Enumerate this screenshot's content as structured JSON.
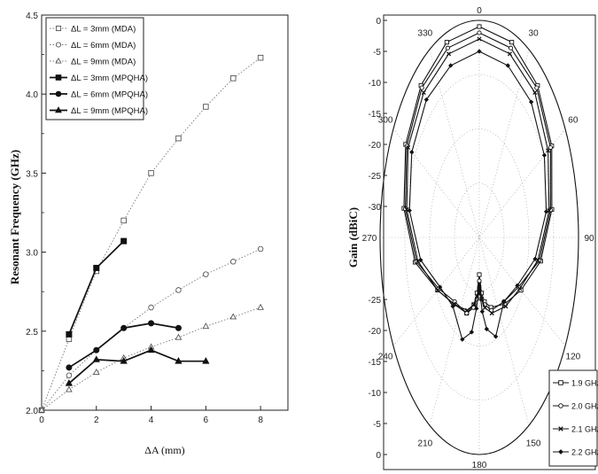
{
  "chart_data": [
    {
      "type": "line",
      "xlabel": "ΔA (mm)",
      "ylabel": "Resonant Frequency (GHz)",
      "xlim": [
        0,
        9
      ],
      "ylim": [
        2.0,
        4.5
      ],
      "x_ticks": [
        "0",
        "2",
        "4",
        "6",
        "8"
      ],
      "y_ticks": [
        "2.0",
        "2.5",
        "3.0",
        "3.5",
        "4.0",
        "4.5"
      ],
      "legend_position": "top-left",
      "grid": false,
      "series": [
        {
          "name": "ΔL = 3mm (MDA)",
          "style": "dotted",
          "marker": "square-open",
          "x": [
            0,
            1,
            2,
            3,
            4,
            5,
            6,
            7,
            8
          ],
          "y": [
            2.0,
            2.45,
            2.88,
            3.2,
            3.5,
            3.72,
            3.92,
            4.1,
            4.23
          ]
        },
        {
          "name": "ΔL = 6mm (MDA)",
          "style": "dotted",
          "marker": "circle-open",
          "x": [
            0,
            1,
            2,
            3,
            4,
            5,
            6,
            7,
            8
          ],
          "y": [
            2.0,
            2.22,
            2.38,
            2.52,
            2.65,
            2.76,
            2.86,
            2.94,
            3.02
          ]
        },
        {
          "name": "ΔL = 9mm (MDA)",
          "style": "dotted",
          "marker": "triangle-open",
          "x": [
            0,
            1,
            2,
            3,
            4,
            5,
            6,
            7,
            8
          ],
          "y": [
            2.0,
            2.13,
            2.24,
            2.33,
            2.4,
            2.46,
            2.53,
            2.59,
            2.65
          ]
        },
        {
          "name": "ΔL = 3mm (MPQHA)",
          "style": "solid",
          "marker": "square-filled",
          "x": [
            1,
            2,
            3
          ],
          "y": [
            2.48,
            2.9,
            3.07
          ]
        },
        {
          "name": "ΔL = 6mm (MPQHA)",
          "style": "solid",
          "marker": "circle-filled",
          "x": [
            1,
            2,
            3,
            4,
            5
          ],
          "y": [
            2.27,
            2.38,
            2.52,
            2.55,
            2.52
          ]
        },
        {
          "name": "ΔL = 9mm (MPQHA)",
          "style": "solid",
          "marker": "triangle-filled",
          "x": [
            1,
            2,
            3,
            4,
            5,
            6
          ],
          "y": [
            2.17,
            2.32,
            2.31,
            2.38,
            2.31,
            2.31
          ]
        }
      ]
    },
    {
      "type": "polar",
      "ylabel": "Gain (dBiC)",
      "radial_range_dB": [
        -35,
        0
      ],
      "radial_ticks_upper": [
        "0",
        "-5",
        "-10",
        "-15",
        "-20",
        "-25",
        "-30"
      ],
      "radial_ticks_lower": [
        "-25",
        "-20",
        "-15",
        "-10",
        "-5",
        "0"
      ],
      "angle_labels": [
        "0",
        "30",
        "60",
        "90",
        "120",
        "150",
        "180",
        "210",
        "240",
        "270",
        "300",
        "330"
      ],
      "legend_position": "bottom-right",
      "series": [
        {
          "name": "1.9 GHz",
          "marker": "square",
          "angles": [
            0,
            20,
            40,
            60,
            80,
            100,
            120,
            140,
            160,
            170,
            175,
            180,
            185,
            190,
            200,
            220,
            240,
            260,
            280,
            300,
            320,
            340
          ],
          "gain_dB": [
            -1,
            -1.5,
            -3,
            -5.5,
            -9,
            -13,
            -18,
            -21,
            -23,
            -24.5,
            -26,
            -29,
            -26,
            -24,
            -22,
            -21,
            -18,
            -12,
            -8,
            -5,
            -3,
            -1.5
          ]
        },
        {
          "name": "2.0 GHz",
          "marker": "circle",
          "angles": [
            0,
            20,
            40,
            60,
            80,
            100,
            120,
            140,
            160,
            170,
            175,
            180,
            185,
            190,
            200,
            220,
            240,
            260,
            280,
            300,
            320,
            340
          ],
          "gain_dB": [
            -2,
            -2.5,
            -3.5,
            -6,
            -9.5,
            -13.5,
            -19,
            -21.5,
            -22.5,
            -24,
            -25,
            -28,
            -25,
            -23.5,
            -22,
            -21.5,
            -18.5,
            -12.5,
            -8.5,
            -5.5,
            -3.5,
            -2.5
          ]
        },
        {
          "name": "2.1 GHz",
          "marker": "cross",
          "angles": [
            0,
            20,
            40,
            60,
            80,
            100,
            120,
            140,
            160,
            170,
            175,
            180,
            185,
            190,
            200,
            220,
            240,
            260,
            280,
            300,
            320,
            340
          ],
          "gain_dB": [
            -3,
            -3.5,
            -4.5,
            -7,
            -10,
            -14,
            -18.5,
            -20.5,
            -22,
            -23.5,
            -25,
            -27.5,
            -25.5,
            -24,
            -22.5,
            -21,
            -18,
            -13,
            -9,
            -6,
            -4.5,
            -3.5
          ]
        },
        {
          "name": "2.2 GHz",
          "marker": "diamond",
          "angles": [
            0,
            20,
            40,
            60,
            80,
            100,
            120,
            140,
            160,
            170,
            175,
            180,
            185,
            190,
            200,
            220,
            240,
            260,
            280,
            300,
            320,
            340
          ],
          "gain_dB": [
            -5,
            -5.5,
            -6.5,
            -8.5,
            -11,
            -15,
            -19.5,
            -21.5,
            -18,
            -20,
            -23,
            -27,
            -23.5,
            -19.5,
            -17.5,
            -20.5,
            -19,
            -14,
            -10,
            -7.5,
            -6,
            -5.5
          ]
        }
      ]
    }
  ]
}
